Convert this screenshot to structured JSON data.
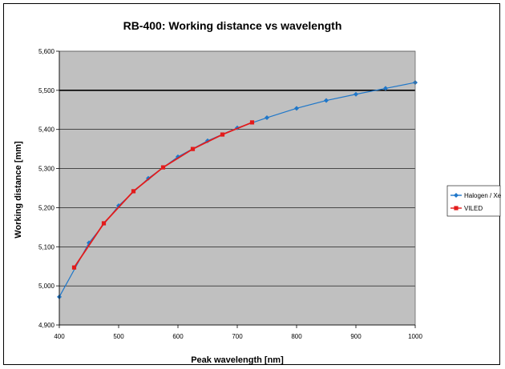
{
  "chart_data": {
    "type": "line",
    "title": "RB-400: Working distance vs wavelength",
    "xlabel": "Peak wavelength [nm]",
    "ylabel": "Working distance [mm]",
    "xlim": [
      400,
      1000
    ],
    "ylim": [
      4.9,
      5.6
    ],
    "x_ticks": [
      400,
      500,
      600,
      700,
      800,
      900,
      1000
    ],
    "y_ticks": [
      4.9,
      5.0,
      5.1,
      5.2,
      5.3,
      5.4,
      5.5,
      5.6
    ],
    "x_tick_labels": [
      "400",
      "500",
      "600",
      "700",
      "800",
      "900",
      "1000"
    ],
    "y_tick_labels": [
      "4,900",
      "5,000",
      "5,100",
      "5,200",
      "5,300",
      "5,400",
      "5,500",
      "5,600"
    ],
    "reference_line_y": 5.5,
    "grid": true,
    "plot_background": "#c0c0c0",
    "legend_position": "right",
    "series": [
      {
        "name": "Halogen / Xe",
        "color": "#1f77c9",
        "marker": "diamond",
        "x": [
          400,
          450,
          500,
          550,
          600,
          650,
          700,
          750,
          800,
          850,
          900,
          950,
          1000
        ],
        "y": [
          4.972,
          5.11,
          5.205,
          5.275,
          5.33,
          5.371,
          5.404,
          5.43,
          5.454,
          5.474,
          5.49,
          5.505,
          5.52
        ]
      },
      {
        "name": "VILED",
        "color": "#e31b1b",
        "marker": "square",
        "x": [
          425,
          475,
          525,
          575,
          625,
          675,
          725
        ],
        "y": [
          5.047,
          5.16,
          5.242,
          5.303,
          5.35,
          5.387,
          5.418
        ]
      }
    ]
  }
}
